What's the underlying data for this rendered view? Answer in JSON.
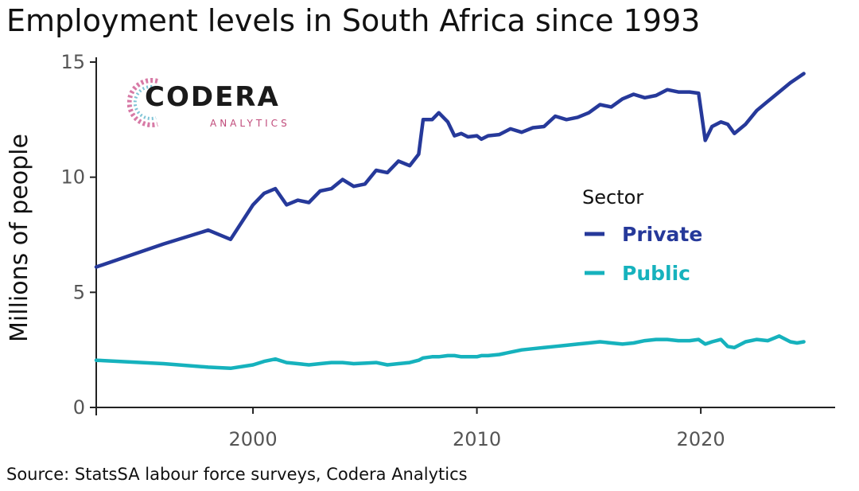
{
  "title": "Employment levels in South Africa since 1993",
  "source": "Source: StatsSA labour force surveys, Codera Analytics",
  "logo": {
    "name": "CODERA",
    "sub": "ANALYTICS"
  },
  "colors": {
    "private": "#26399a",
    "public": "#16b2bd",
    "axis": "#222222"
  },
  "chart_data": {
    "type": "line",
    "xlabel": "",
    "ylabel": "Millions of people",
    "xlim": [
      1993,
      2026
    ],
    "ylim": [
      0,
      15
    ],
    "xticks": [
      2000,
      2010,
      2020
    ],
    "yticks": [
      0,
      5,
      10,
      15
    ],
    "grid": false,
    "legend": {
      "title": "Sector",
      "position": "right"
    },
    "series": [
      {
        "name": "Private",
        "x": [
          1993.0,
          1996.0,
          1998.0,
          1999.0,
          2000.0,
          2000.5,
          2001.0,
          2001.5,
          2002.0,
          2002.5,
          2003.0,
          2003.5,
          2004.0,
          2004.5,
          2005.0,
          2005.5,
          2006.0,
          2006.5,
          2007.0,
          2007.4,
          2007.6,
          2008.0,
          2008.3,
          2008.7,
          2009.0,
          2009.3,
          2009.6,
          2010.0,
          2010.2,
          2010.5,
          2011.0,
          2011.5,
          2012.0,
          2012.5,
          2013.0,
          2013.5,
          2014.0,
          2014.5,
          2015.0,
          2015.5,
          2016.0,
          2016.5,
          2017.0,
          2017.5,
          2018.0,
          2018.5,
          2019.0,
          2019.5,
          2019.9,
          2020.2,
          2020.5,
          2020.9,
          2021.2,
          2021.5,
          2022.0,
          2022.5,
          2023.0,
          2023.5,
          2024.0,
          2024.3,
          2024.6
        ],
        "values": [
          6.1,
          7.1,
          7.7,
          7.3,
          8.8,
          9.3,
          9.5,
          8.8,
          9.0,
          8.9,
          9.4,
          9.5,
          9.9,
          9.6,
          9.7,
          10.3,
          10.2,
          10.7,
          10.5,
          11.0,
          12.5,
          12.5,
          12.8,
          12.4,
          11.8,
          11.9,
          11.75,
          11.8,
          11.65,
          11.8,
          11.85,
          12.1,
          11.95,
          12.15,
          12.2,
          12.65,
          12.5,
          12.6,
          12.8,
          13.15,
          13.05,
          13.4,
          13.6,
          13.45,
          13.55,
          13.8,
          13.7,
          13.7,
          13.65,
          11.6,
          12.2,
          12.4,
          12.3,
          11.9,
          12.3,
          12.9,
          13.3,
          13.7,
          14.1,
          14.3,
          14.5
        ]
      },
      {
        "name": "Public",
        "x": [
          1993.0,
          1996.0,
          1998.0,
          1999.0,
          2000.0,
          2000.5,
          2001.0,
          2001.5,
          2002.0,
          2002.5,
          2003.0,
          2003.5,
          2004.0,
          2004.5,
          2005.0,
          2005.5,
          2006.0,
          2006.5,
          2007.0,
          2007.4,
          2007.6,
          2008.0,
          2008.3,
          2008.7,
          2009.0,
          2009.3,
          2009.6,
          2010.0,
          2010.2,
          2010.5,
          2011.0,
          2011.5,
          2012.0,
          2012.5,
          2013.0,
          2013.5,
          2014.0,
          2014.5,
          2015.0,
          2015.5,
          2016.0,
          2016.5,
          2017.0,
          2017.5,
          2018.0,
          2018.5,
          2019.0,
          2019.5,
          2019.9,
          2020.2,
          2020.5,
          2020.9,
          2021.2,
          2021.5,
          2022.0,
          2022.5,
          2023.0,
          2023.5,
          2024.0,
          2024.3,
          2024.6
        ],
        "values": [
          2.05,
          1.9,
          1.75,
          1.7,
          1.85,
          2.0,
          2.1,
          1.95,
          1.9,
          1.85,
          1.9,
          1.95,
          1.95,
          1.9,
          1.92,
          1.95,
          1.85,
          1.9,
          1.95,
          2.05,
          2.15,
          2.2,
          2.2,
          2.25,
          2.25,
          2.2,
          2.2,
          2.2,
          2.25,
          2.25,
          2.3,
          2.4,
          2.5,
          2.55,
          2.6,
          2.65,
          2.7,
          2.75,
          2.8,
          2.85,
          2.8,
          2.75,
          2.8,
          2.9,
          2.95,
          2.95,
          2.9,
          2.9,
          2.95,
          2.75,
          2.85,
          2.95,
          2.65,
          2.6,
          2.85,
          2.95,
          2.9,
          3.1,
          2.85,
          2.8,
          2.85
        ]
      }
    ]
  }
}
